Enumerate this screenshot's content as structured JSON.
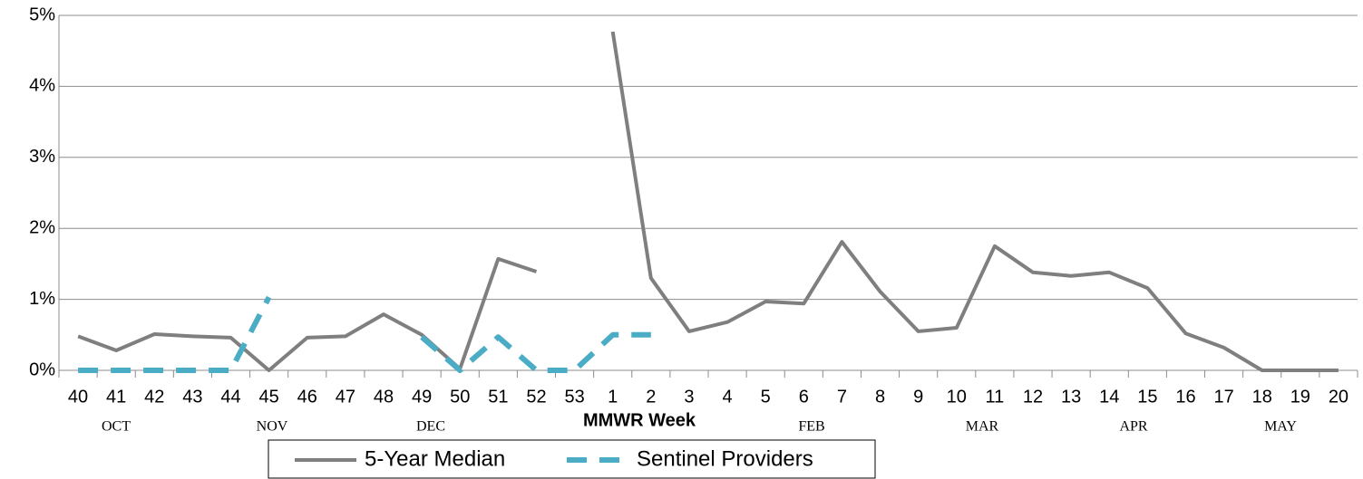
{
  "chart_data": {
    "type": "line",
    "x_label": "MMWR Week",
    "categories": [
      "40",
      "41",
      "42",
      "43",
      "44",
      "45",
      "46",
      "47",
      "48",
      "49",
      "50",
      "51",
      "52",
      "53",
      "1",
      "2",
      "3",
      "4",
      "5",
      "6",
      "7",
      "8",
      "9",
      "10",
      "11",
      "12",
      "13",
      "14",
      "15",
      "16",
      "17",
      "18",
      "19",
      "20"
    ],
    "month_labels": [
      "OCT",
      "NOV",
      "DEC",
      "FEB",
      "MAR",
      "APR",
      "MAY"
    ],
    "series": [
      {
        "name": "5-Year Median",
        "color": "#7f7f7f",
        "dashed": false,
        "values": [
          0.48,
          0.28,
          0.51,
          0.48,
          0.46,
          0,
          0.46,
          0.48,
          0.79,
          0.5,
          0.02,
          1.57,
          1.39,
          null,
          4.77,
          1.3,
          0.55,
          0.68,
          0.97,
          0.94,
          1.81,
          1.11,
          0.55,
          0.6,
          1.75,
          1.38,
          1.33,
          1.38,
          1.16,
          0.52,
          0.32,
          0,
          0,
          0
        ]
      },
      {
        "name": "Sentinel Providers",
        "color": "#4bacc6",
        "dashed": true,
        "values": [
          0,
          0,
          0,
          0,
          0,
          1.03,
          null,
          null,
          null,
          0.47,
          0,
          0.47,
          0,
          0,
          0.5,
          0.5,
          null,
          null,
          null,
          null,
          null,
          null,
          null,
          null,
          null,
          null,
          null,
          null,
          null,
          null,
          null,
          null,
          null,
          null
        ]
      }
    ],
    "ylim": [
      0,
      5
    ],
    "yticks": [
      {
        "value": 0,
        "label": "0%"
      },
      {
        "value": 1,
        "label": "1%"
      },
      {
        "value": 2,
        "label": "2%"
      },
      {
        "value": 3,
        "label": "3%"
      },
      {
        "value": 4,
        "label": "4%"
      },
      {
        "value": 5,
        "label": "5%"
      }
    ],
    "grid": true
  }
}
